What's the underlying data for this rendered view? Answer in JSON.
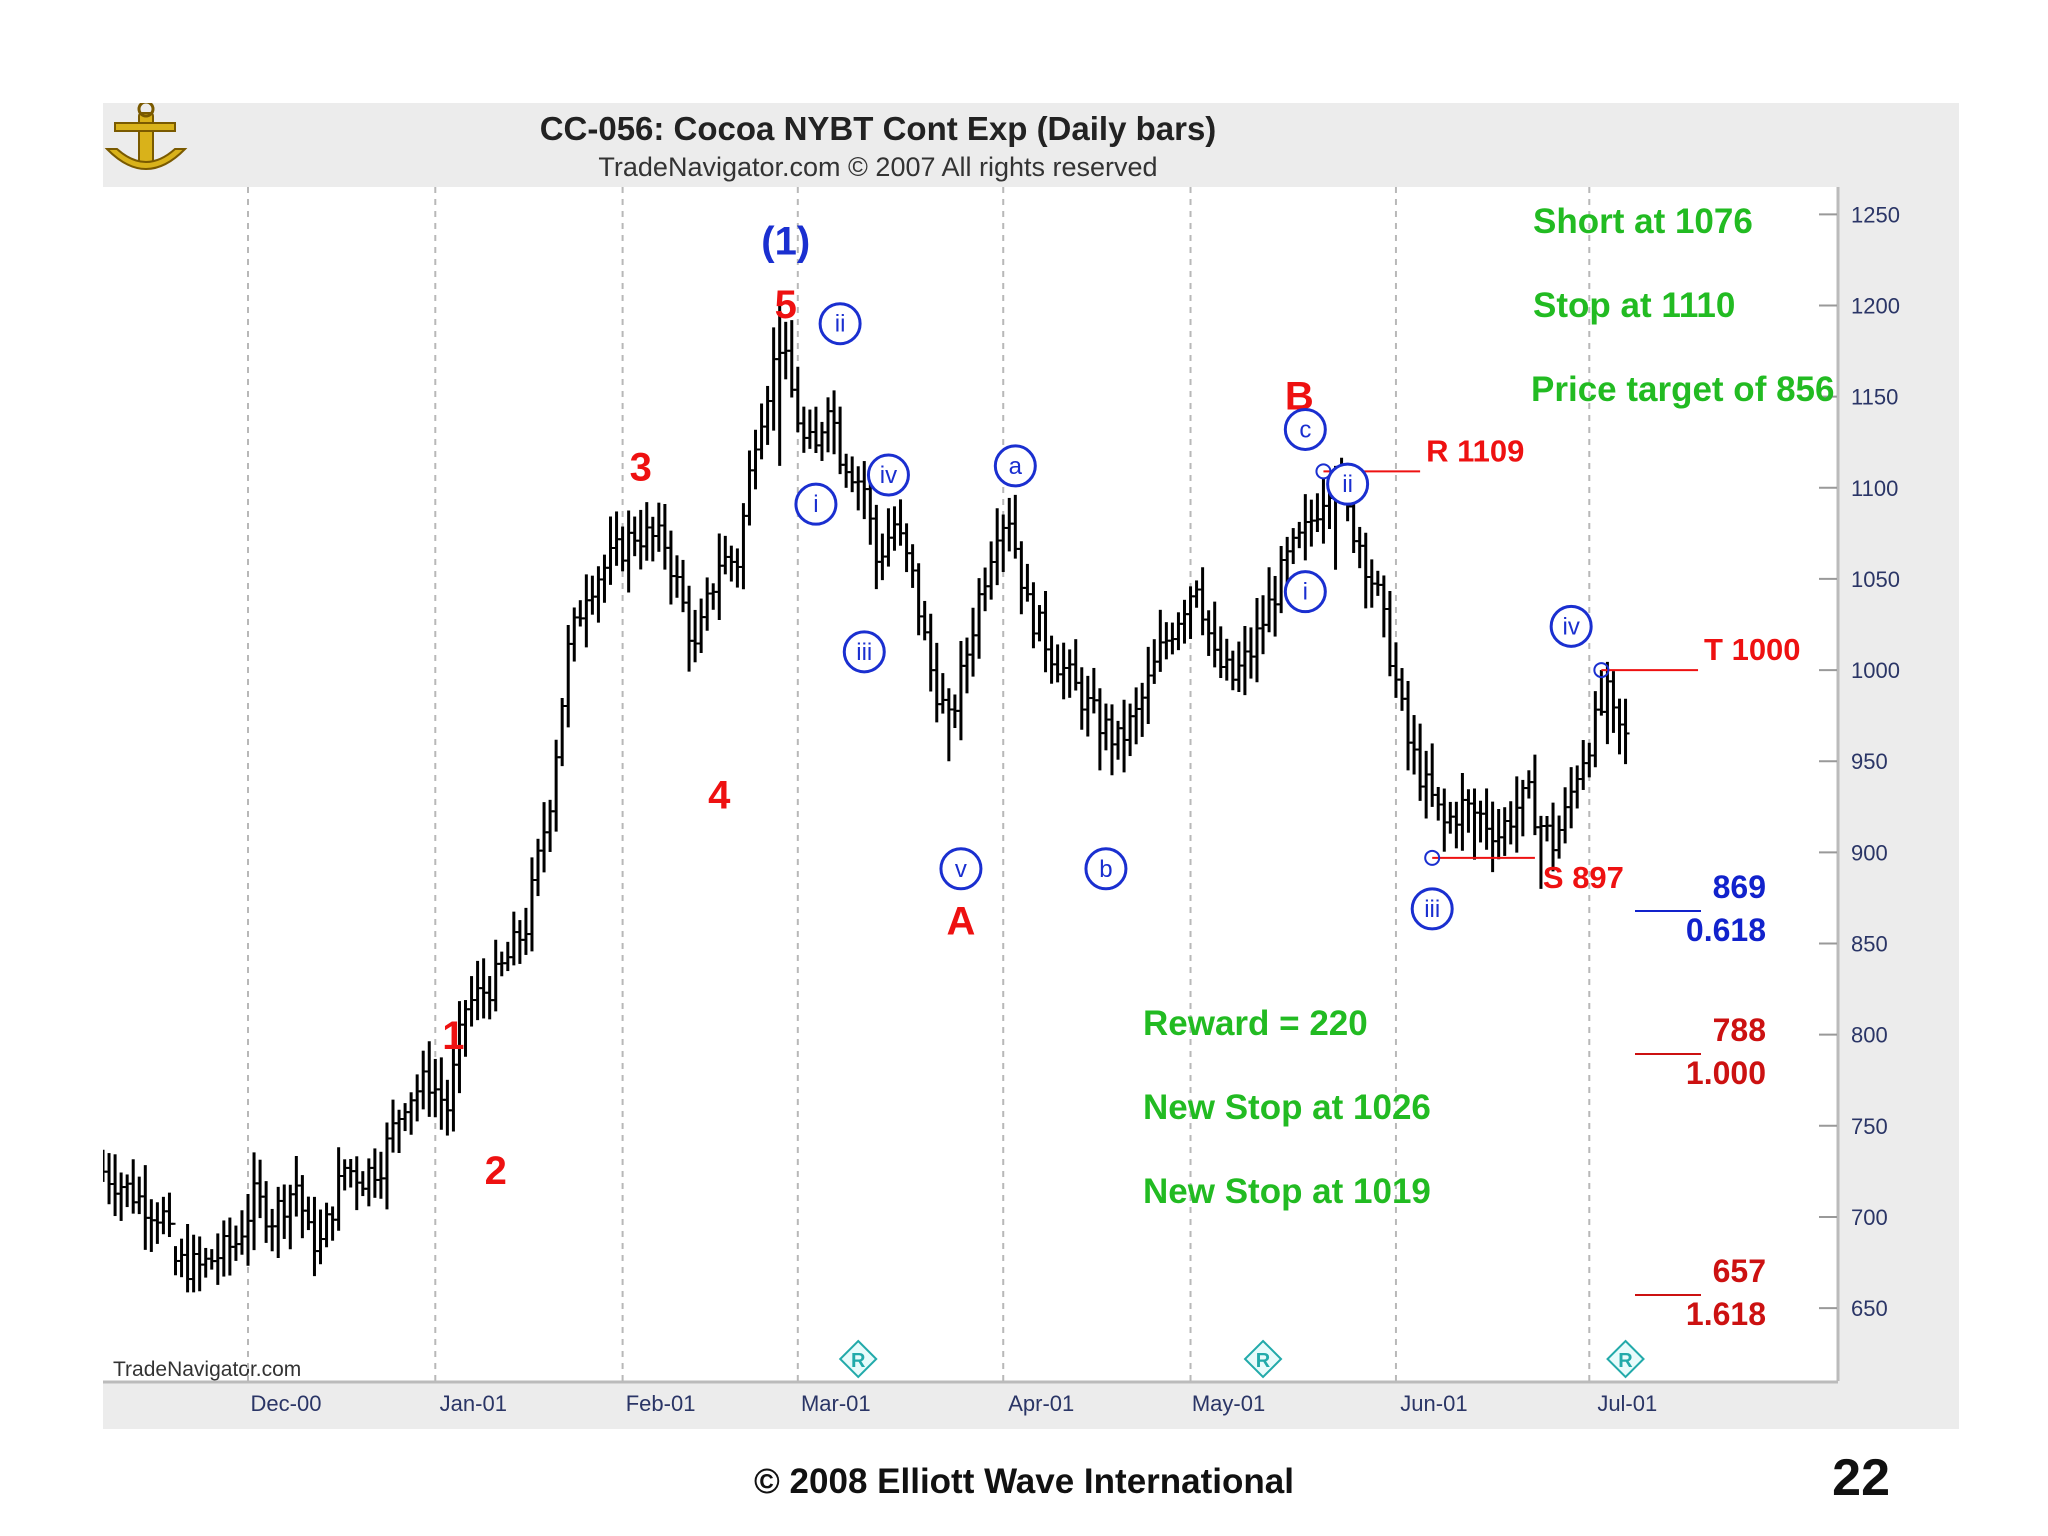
{
  "chart_data": {
    "type": "bar",
    "title": "CC-056:  Cocoa NYBT Cont Exp  (Daily bars)",
    "subtitle": "TradeNavigator.com © 2007 All rights reserved",
    "watermark": "TradeNavigator.com",
    "y_axis": {
      "ticks": [
        650,
        700,
        750,
        800,
        850,
        900,
        950,
        1000,
        1050,
        1100,
        1150,
        1200,
        1250
      ],
      "range": [
        610,
        1265
      ],
      "side": "right"
    },
    "x_axis": {
      "ticks": [
        {
          "label": "Dec-00",
          "day": 24
        },
        {
          "label": "Jan-01",
          "day": 55
        },
        {
          "label": "Feb-01",
          "day": 86
        },
        {
          "label": "Mar-01",
          "day": 115
        },
        {
          "label": "Apr-01",
          "day": 149
        },
        {
          "label": "May-01",
          "day": 180
        },
        {
          "label": "Jun-01",
          "day": 214
        },
        {
          "label": "Jul-01",
          "day": 246
        }
      ],
      "range": [
        0,
        287
      ]
    },
    "grid": "vertical dashed at month starts",
    "anchors": [
      [
        0,
        725
      ],
      [
        3,
        718
      ],
      [
        8,
        705
      ],
      [
        10,
        700
      ],
      [
        12,
        675
      ],
      [
        16,
        672
      ],
      [
        22,
        686
      ],
      [
        25,
        710
      ],
      [
        28,
        700
      ],
      [
        32,
        718
      ],
      [
        34,
        690
      ],
      [
        36,
        685
      ],
      [
        40,
        727
      ],
      [
        43,
        722
      ],
      [
        46,
        730
      ],
      [
        50,
        765
      ],
      [
        54,
        775
      ],
      [
        57,
        760
      ],
      [
        60,
        815
      ],
      [
        65,
        830
      ],
      [
        70,
        860
      ],
      [
        74,
        930
      ],
      [
        77,
        1010
      ],
      [
        80,
        1045
      ],
      [
        84,
        1060
      ],
      [
        88,
        1075
      ],
      [
        93,
        1070
      ],
      [
        96,
        1035
      ],
      [
        98,
        1010
      ],
      [
        102,
        1060
      ],
      [
        105,
        1060
      ],
      [
        108,
        1130
      ],
      [
        112,
        1180
      ],
      [
        116,
        1125
      ],
      [
        118,
        1120
      ],
      [
        120,
        1150
      ],
      [
        122,
        1120
      ],
      [
        124,
        1110
      ],
      [
        126,
        1100
      ],
      [
        128,
        1060
      ],
      [
        131,
        1080
      ],
      [
        134,
        1050
      ],
      [
        137,
        1000
      ],
      [
        140,
        970
      ],
      [
        142,
        995
      ],
      [
        145,
        1040
      ],
      [
        148,
        1080
      ],
      [
        150,
        1085
      ],
      [
        153,
        1035
      ],
      [
        157,
        1010
      ],
      [
        160,
        995
      ],
      [
        164,
        975
      ],
      [
        168,
        960
      ],
      [
        171,
        975
      ],
      [
        175,
        1010
      ],
      [
        178,
        1030
      ],
      [
        181,
        1050
      ],
      [
        184,
        1005
      ],
      [
        187,
        995
      ],
      [
        190,
        1010
      ],
      [
        193,
        1035
      ],
      [
        196,
        1060
      ],
      [
        199,
        1075
      ],
      [
        201,
        1090
      ],
      [
        204,
        1110
      ],
      [
        206,
        1085
      ],
      [
        208,
        1070
      ],
      [
        211,
        1040
      ],
      [
        213,
        1010
      ],
      [
        216,
        960
      ],
      [
        219,
        935
      ],
      [
        222,
        915
      ],
      [
        225,
        925
      ],
      [
        228,
        920
      ],
      [
        231,
        910
      ],
      [
        234,
        925
      ],
      [
        236,
        930
      ],
      [
        238,
        915
      ],
      [
        240,
        905
      ],
      [
        242,
        920
      ],
      [
        244,
        945
      ],
      [
        247,
        970
      ],
      [
        249,
        985
      ],
      [
        250,
        972
      ],
      [
        252,
        962
      ]
    ],
    "key_bars": [
      {
        "day": 12,
        "low": 668,
        "high": 684
      },
      {
        "day": 112,
        "low": 1112,
        "high": 1202
      },
      {
        "day": 140,
        "low": 950,
        "high": 990
      },
      {
        "day": 165,
        "low": 945,
        "high": 990
      },
      {
        "day": 204,
        "low": 1055,
        "high": 1112
      },
      {
        "day": 227,
        "low": 896,
        "high": 935
      },
      {
        "day": 238,
        "low": 880,
        "high": 920
      },
      {
        "day": 248,
        "low": 975,
        "high": 1000
      }
    ],
    "wave_labels": [
      {
        "text": "(1)",
        "day": 113,
        "price": 1228,
        "style": "blue-paren"
      },
      {
        "text": "5",
        "day": 113,
        "price": 1193,
        "style": "red"
      },
      {
        "text": "1",
        "day": 58,
        "price": 792,
        "style": "red"
      },
      {
        "text": "2",
        "day": 65,
        "price": 718,
        "style": "red"
      },
      {
        "text": "3",
        "day": 89,
        "price": 1104,
        "style": "red"
      },
      {
        "text": "4",
        "day": 102,
        "price": 924,
        "style": "red"
      },
      {
        "text": "i",
        "day": 118,
        "price": 1091,
        "style": "blue-circle"
      },
      {
        "text": "ii",
        "day": 122,
        "price": 1190,
        "style": "blue-circle"
      },
      {
        "text": "iii",
        "day": 126,
        "price": 1010,
        "style": "blue-circle"
      },
      {
        "text": "iv",
        "day": 130,
        "price": 1107,
        "style": "blue-circle"
      },
      {
        "text": "v",
        "day": 142,
        "price": 891,
        "style": "blue-circle"
      },
      {
        "text": "a",
        "day": 151,
        "price": 1112,
        "style": "blue-circle"
      },
      {
        "text": "b",
        "day": 166,
        "price": 891,
        "style": "blue-circle"
      },
      {
        "text": "A",
        "day": 142,
        "price": 855,
        "style": "red"
      },
      {
        "text": "B",
        "day": 198,
        "price": 1143,
        "style": "red"
      },
      {
        "text": "c",
        "day": 199,
        "price": 1132,
        "style": "blue-circle"
      },
      {
        "text": "ii",
        "day": 206,
        "price": 1102,
        "style": "blue-circle"
      },
      {
        "text": "i",
        "day": 199,
        "price": 1043,
        "style": "blue-circle"
      },
      {
        "text": "iii",
        "day": 220,
        "price": 869,
        "style": "blue-circle"
      },
      {
        "text": "iv",
        "day": 243,
        "price": 1024,
        "style": "blue-circle"
      }
    ],
    "levels": [
      {
        "label": "R 1109",
        "price": 1109,
        "from_day": 202,
        "to_day": 218,
        "color": "#ee1111"
      },
      {
        "label": "T 1000",
        "price": 1000,
        "from_day": 248,
        "to_day": 264,
        "color": "#ee1111"
      },
      {
        "label": "S 897",
        "price": 897,
        "from_day": 220,
        "to_day": 237,
        "color": "#ee1111"
      }
    ],
    "fib_projections": [
      {
        "value": "869",
        "ratio": "0.618",
        "color": "#1122cc"
      },
      {
        "value": "788",
        "ratio": "1.000",
        "color": "#cc1111"
      },
      {
        "value": "657",
        "ratio": "1.618",
        "color": "#cc1111"
      }
    ],
    "trade_notes_top": [
      "Short at 1076",
      "Stop at 1110",
      "Price target of 856"
    ],
    "trade_notes_bottom": [
      "Reward = 220",
      "New Stop at 1026",
      "New Stop at 1019"
    ],
    "notes_color": "#22bb22",
    "r_marker_days": [
      125,
      192,
      252
    ],
    "r_marker_symbol": "R"
  },
  "footer": {
    "copyright": "© 2008 Elliott Wave International",
    "page_number": "22"
  }
}
